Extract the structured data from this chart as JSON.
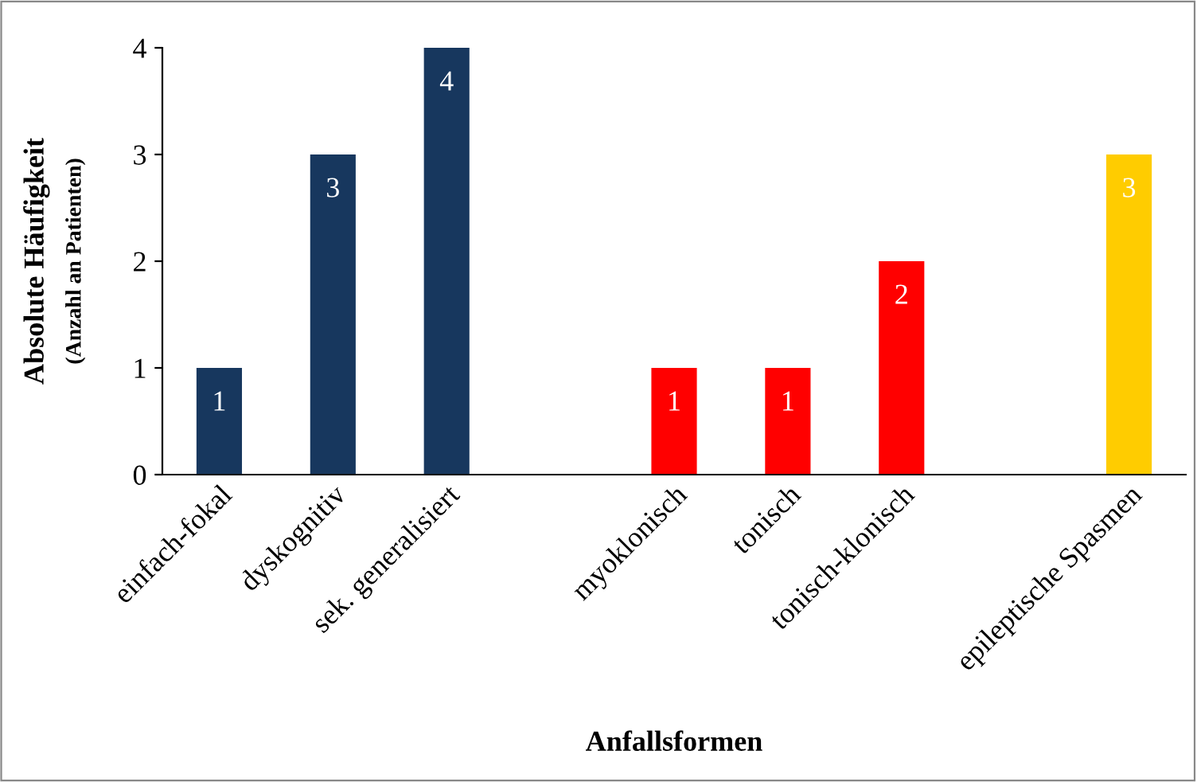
{
  "chart_data": {
    "type": "bar",
    "xlabel": "Anfallsformen",
    "ylabel": "Absolute Häufigkeit\n(Anzahl an Patienten)",
    "categories": [
      "einfach-fokal",
      "dyskognitiv",
      "sek. generalisiert",
      null,
      "myoklonisch",
      "tonisch",
      "tonisch-klonisch",
      null,
      "epileptische Spasmen"
    ],
    "values": [
      1,
      3,
      4,
      null,
      1,
      1,
      2,
      null,
      3
    ],
    "colors": [
      "#17375e",
      "#17375e",
      "#17375e",
      null,
      "#ff0000",
      "#ff0000",
      "#ff0000",
      null,
      "#ffcc00"
    ],
    "ylim": [
      0,
      4
    ],
    "yticks": [
      0,
      1,
      2,
      3,
      4
    ],
    "grid": false,
    "legend": false,
    "data_labels": true
  }
}
